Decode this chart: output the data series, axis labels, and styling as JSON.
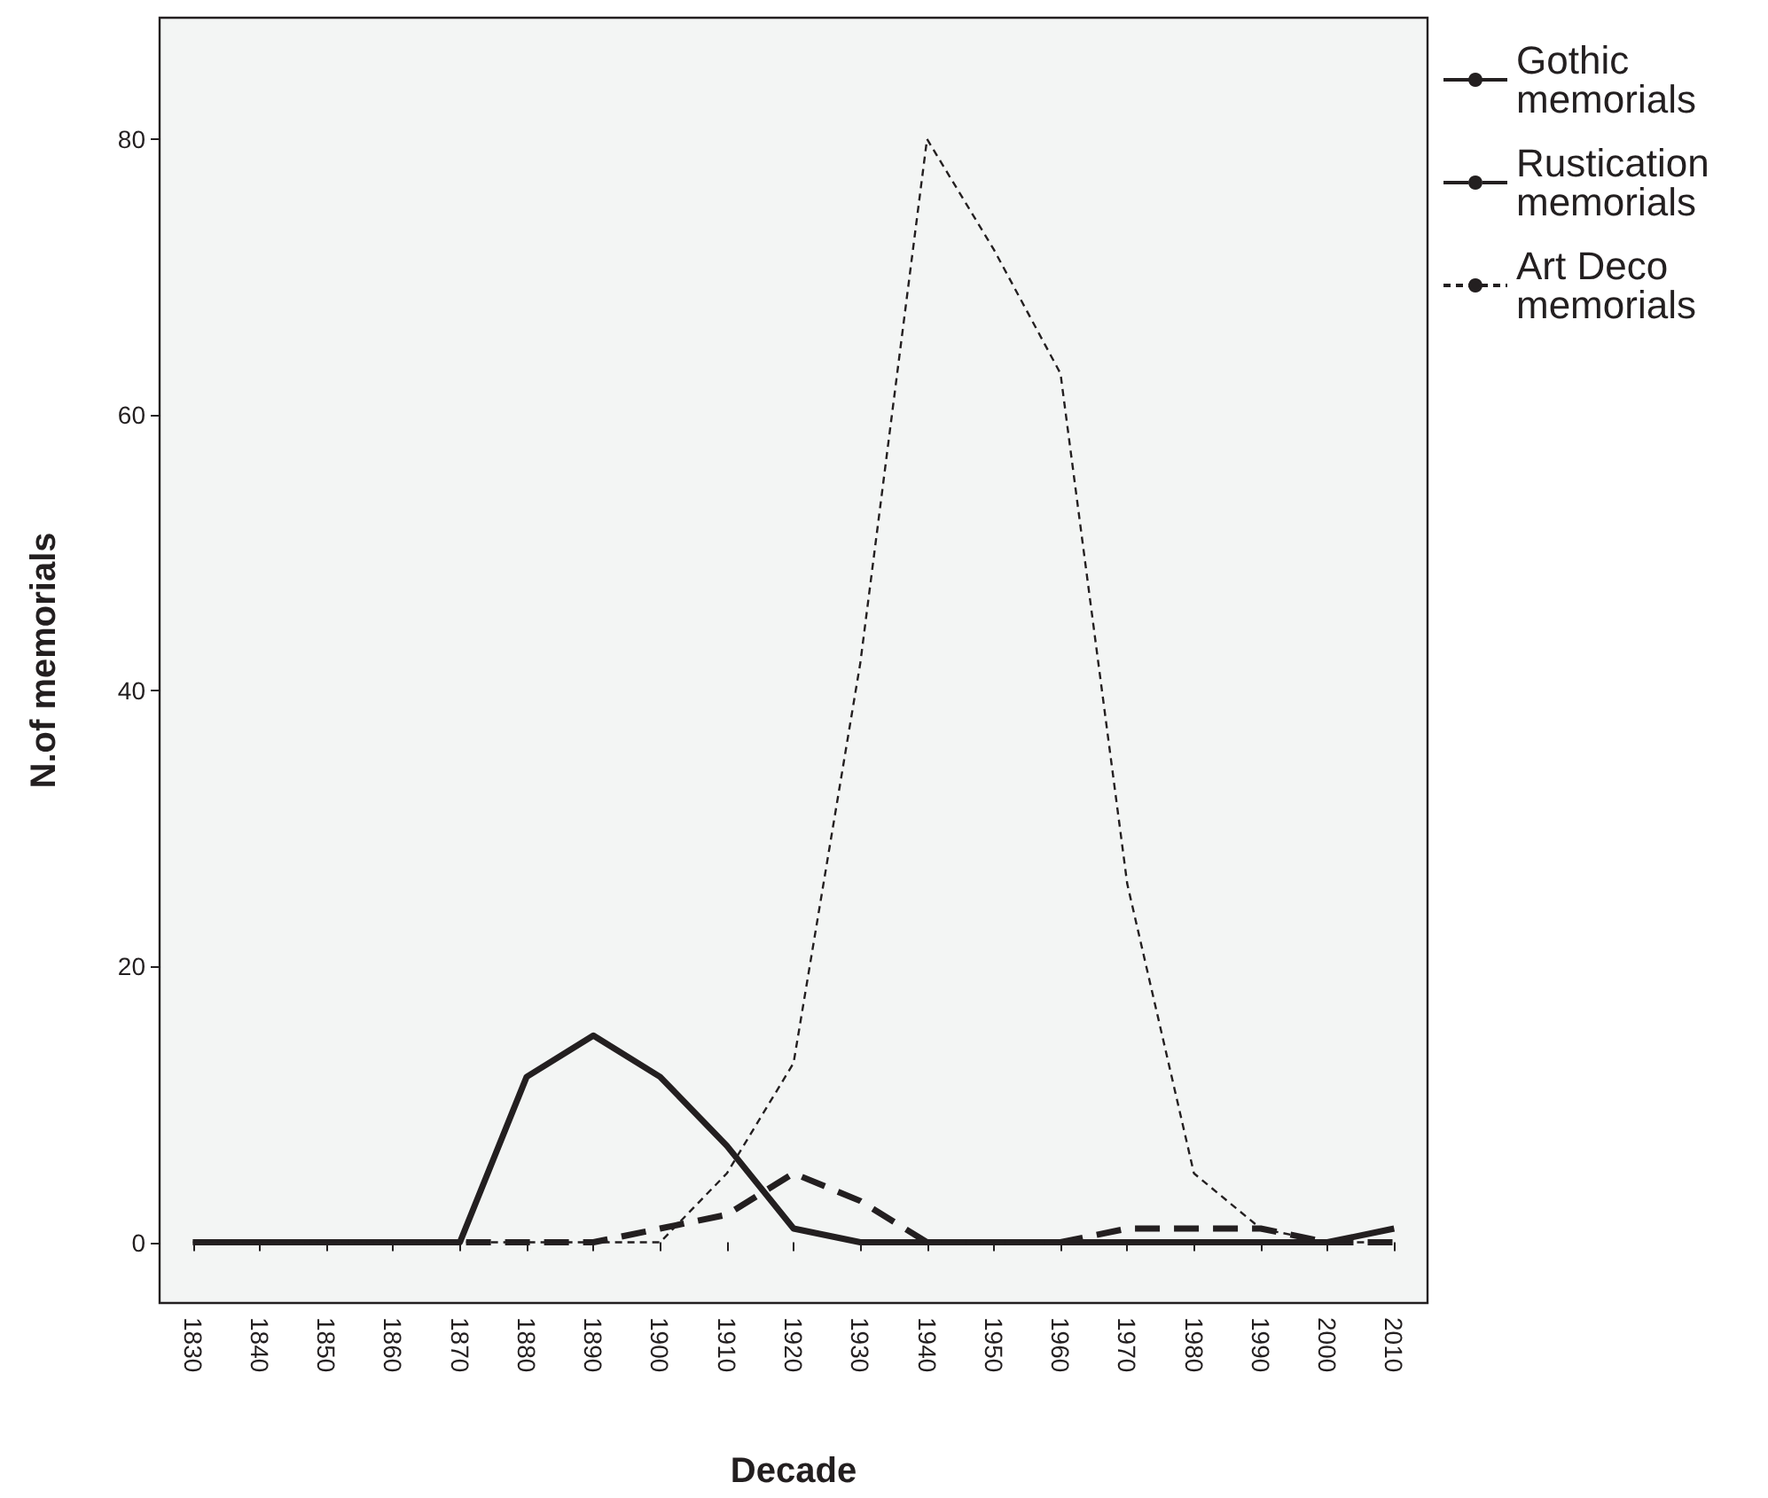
{
  "chart_data": {
    "type": "line",
    "xlabel": "Decade",
    "ylabel": "N.of memorials",
    "categories": [
      "1830",
      "1840",
      "1850",
      "1860",
      "1870",
      "1880",
      "1890",
      "1900",
      "1910",
      "1920",
      "1930",
      "1940",
      "1950",
      "1960",
      "1970",
      "1980",
      "1990",
      "2000",
      "2010"
    ],
    "series": [
      {
        "name": "Gothic memorials",
        "color": "#231f20",
        "line_style": "solid",
        "values": [
          0,
          0,
          0,
          0,
          0,
          12,
          15,
          12,
          7,
          1,
          0,
          0,
          0,
          0,
          0,
          0,
          0,
          0,
          1
        ]
      },
      {
        "name": "Rustication memorials",
        "color": "#231f20",
        "line_style": "dashed",
        "values": [
          0,
          0,
          0,
          0,
          0,
          0,
          0,
          1,
          2,
          5,
          3,
          0,
          0,
          0,
          1,
          1,
          1,
          0,
          0
        ]
      },
      {
        "name": "Art Deco memorials",
        "color": "#231f20",
        "line_style": "dashed",
        "values": [
          0,
          0,
          0,
          0,
          0,
          0,
          0,
          0,
          5,
          13,
          42,
          80,
          72,
          63,
          26,
          5,
          1,
          0,
          0
        ]
      }
    ],
    "ylim": [
      -4.4,
      88.8
    ],
    "yticks": [
      0,
      20,
      40,
      60,
      80
    ],
    "grid": false,
    "legend": "top right",
    "marker": "none"
  }
}
